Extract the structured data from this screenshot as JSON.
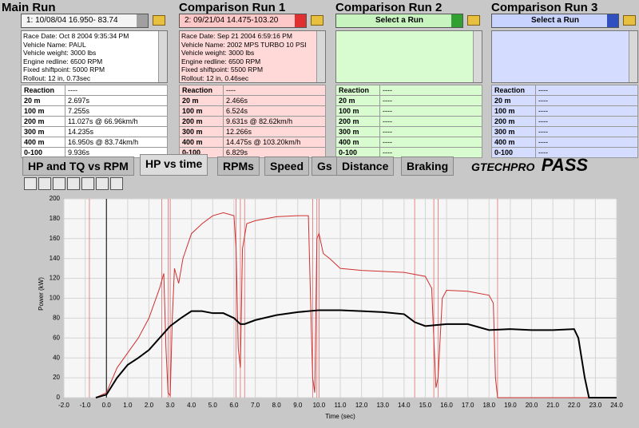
{
  "panels": [
    {
      "title": "Main Run",
      "selector": "1:  10/08/04 16.950- 83.74",
      "theme": "main",
      "info": [
        "Race Date: Oct 8 2004  9:35:34 PM",
        "Vehicle Name: PAUL",
        "Vehicle weight: 3000 lbs",
        "Engine redline: 6500 RPM",
        "Fixed shiftpoint: 5000 RPM",
        "Rollout: 12 in, 0.73sec"
      ],
      "rows": [
        [
          "Reaction",
          "----"
        ],
        [
          "20 m",
          "2.697s"
        ],
        [
          "100 m",
          "7.255s"
        ],
        [
          "200 m",
          "11.027s @ 66.96km/h"
        ],
        [
          "300 m",
          "14.235s"
        ],
        [
          "400 m",
          "16.950s @ 83.74km/h"
        ],
        [
          "0-100",
          "9.936s"
        ]
      ]
    },
    {
      "title": "Comparison Run 1",
      "selector": "2:  09/21/04 14.475-103.20",
      "theme": "red",
      "info": [
        "Race Date: Sep 21 2004  6:59:16 PM",
        "Vehicle Name: 2002 MPS TURBO 10 PSI",
        "Vehicle weight: 3000 lbs",
        "Engine redline: 6500 RPM",
        "Fixed shiftpoint: 5500 RPM",
        "Rollout: 12 in, 0.46sec"
      ],
      "rows": [
        [
          "Reaction",
          "----"
        ],
        [
          "20 m",
          "2.466s"
        ],
        [
          "100 m",
          "6.524s"
        ],
        [
          "200 m",
          "9.631s @ 82.62km/h"
        ],
        [
          "300 m",
          "12.266s"
        ],
        [
          "400 m",
          "14.475s @ 103.20km/h"
        ],
        [
          "0-100",
          "6.829s"
        ]
      ]
    },
    {
      "title": "Comparison Run 2",
      "selector": "Select a Run",
      "theme": "green",
      "info": [],
      "rows": [
        [
          "Reaction",
          "----"
        ],
        [
          "20 m",
          "----"
        ],
        [
          "100 m",
          "----"
        ],
        [
          "200 m",
          "----"
        ],
        [
          "300 m",
          "----"
        ],
        [
          "400 m",
          "----"
        ],
        [
          "0-100",
          "----"
        ]
      ]
    },
    {
      "title": "Comparison Run 3",
      "selector": "Select a Run",
      "theme": "blue",
      "info": [],
      "rows": [
        [
          "Reaction",
          "----"
        ],
        [
          "20 m",
          "----"
        ],
        [
          "100 m",
          "----"
        ],
        [
          "200 m",
          "----"
        ],
        [
          "300 m",
          "----"
        ],
        [
          "400 m",
          "----"
        ],
        [
          "0-100",
          "----"
        ]
      ]
    }
  ],
  "tabs": [
    "HP and TQ vs RPM",
    "HP vs time",
    "RPMs",
    "Speed",
    "Gs",
    "Distance",
    "Braking"
  ],
  "active_tab": 1,
  "logo": {
    "brand": "GTECHPRO",
    "product": "PASS"
  },
  "chart_data": {
    "type": "line",
    "x_label": "Time (sec)",
    "y_label": "Power (kW)",
    "xlim": [
      -2,
      24
    ],
    "ylim": [
      0,
      200
    ],
    "grid": true,
    "xticks": [
      {
        "value": -2,
        "label": "-2.0"
      },
      {
        "value": -1,
        "label": "-1.0"
      },
      {
        "value": 0,
        "label": "0.0"
      },
      {
        "value": 1,
        "label": "1.0"
      },
      {
        "value": 2,
        "label": "2.0"
      },
      {
        "value": 3,
        "label": "3.0"
      },
      {
        "value": 4,
        "label": "4.0"
      },
      {
        "value": 5,
        "label": "5.0"
      },
      {
        "value": 6,
        "label": "6.0"
      },
      {
        "value": 7,
        "label": "7.0"
      },
      {
        "value": 8,
        "label": "8.0"
      },
      {
        "value": 9,
        "label": "9.0"
      },
      {
        "value": 10,
        "label": "10.0"
      },
      {
        "value": 11,
        "label": "11.0"
      },
      {
        "value": 12,
        "label": "12.0"
      },
      {
        "value": 13,
        "label": "13.0"
      },
      {
        "value": 14,
        "label": "14.0"
      },
      {
        "value": 15,
        "label": "15.0"
      },
      {
        "value": 16,
        "label": "16.0"
      },
      {
        "value": 17,
        "label": "17.0"
      },
      {
        "value": 18,
        "label": "18.0"
      },
      {
        "value": 19,
        "label": "19.0"
      },
      {
        "value": 20,
        "label": "20.0"
      },
      {
        "value": 21,
        "label": "21.0"
      },
      {
        "value": 22,
        "label": "22.0"
      },
      {
        "value": 23,
        "label": "23.0"
      },
      {
        "value": 24,
        "label": "24.0"
      }
    ],
    "yticks": [
      0,
      20,
      40,
      60,
      80,
      100,
      120,
      140,
      160,
      180,
      200
    ],
    "markers": {
      "color": "#e07070",
      "x": [
        -0.8,
        2.6,
        2.9,
        3.0,
        6.1,
        6.3,
        6.5,
        9.7,
        9.9,
        10.0,
        14.5,
        15.4,
        15.6,
        18.4
      ]
    },
    "series": [
      {
        "color": "#d03030",
        "x": [
          -0.5,
          0,
          0.5,
          1,
          1.5,
          2,
          2.5,
          2.7,
          2.8,
          2.9,
          3.0,
          3.1,
          3.2,
          3.4,
          3.6,
          4,
          4.5,
          5,
          5.5,
          6,
          6.1,
          6.2,
          6.3,
          6.4,
          6.6,
          7,
          8,
          9,
          9.5,
          9.7,
          9.8,
          9.9,
          10,
          10.2,
          10.5,
          11,
          12,
          13,
          14,
          14.5,
          15,
          15.3,
          15.5,
          15.6,
          15.8,
          16,
          17,
          18,
          18.2,
          18.3,
          18.4,
          24
        ],
        "values": [
          0,
          5,
          30,
          45,
          60,
          80,
          110,
          125,
          50,
          5,
          2,
          80,
          130,
          115,
          140,
          165,
          175,
          183,
          186,
          183,
          150,
          50,
          30,
          150,
          175,
          178,
          182,
          183,
          183,
          20,
          5,
          160,
          165,
          145,
          140,
          130,
          128,
          127,
          126,
          124,
          122,
          110,
          10,
          20,
          100,
          108,
          107,
          103,
          95,
          20,
          0,
          0
        ]
      },
      {
        "color": "#000000",
        "x": [
          -0.5,
          0,
          0.5,
          1,
          1.5,
          2,
          2.5,
          3,
          3.5,
          4,
          4.5,
          5,
          5.5,
          6,
          6.3,
          6.5,
          7,
          8,
          9,
          10,
          11,
          12,
          13,
          14,
          14.5,
          15,
          16,
          17,
          18,
          19,
          20,
          21,
          22,
          22.2,
          22.5,
          22.7,
          24
        ],
        "values": [
          0,
          3,
          20,
          33,
          40,
          48,
          60,
          72,
          80,
          87,
          87,
          85,
          85,
          80,
          74,
          74,
          78,
          83,
          86,
          88,
          88,
          87,
          86,
          84,
          76,
          72,
          74,
          74,
          68,
          69,
          68,
          68,
          69,
          60,
          20,
          0,
          0
        ]
      }
    ]
  }
}
